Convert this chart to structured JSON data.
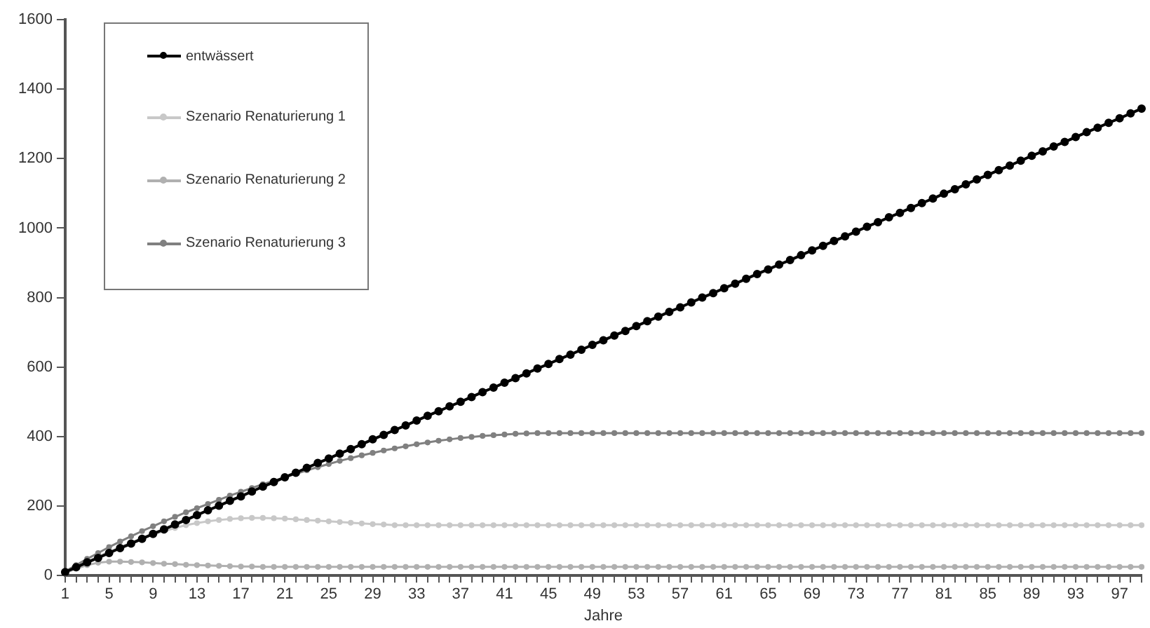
{
  "chart_data": {
    "type": "line",
    "xlabel": "Jahre",
    "ylim": [
      0,
      1600
    ],
    "yticks": [
      0,
      200,
      400,
      600,
      800,
      1000,
      1200,
      1400,
      1600
    ],
    "grid": false,
    "legend": "top left",
    "marker": "circle",
    "line_style": "solid",
    "categories": [
      "1",
      null,
      null,
      null,
      "5",
      null,
      null,
      null,
      "9",
      null,
      null,
      null,
      "13",
      null,
      null,
      null,
      "17",
      null,
      null,
      null,
      "21",
      null,
      null,
      null,
      "25",
      null,
      null,
      null,
      "29",
      null,
      null,
      null,
      "33",
      null,
      null,
      null,
      "37",
      null,
      null,
      null,
      "41",
      null,
      null,
      null,
      "45",
      null,
      null,
      null,
      "49",
      null,
      null,
      null,
      "53",
      null,
      null,
      null,
      "57",
      null,
      null,
      null,
      "61",
      null,
      null,
      null,
      "65",
      null,
      null,
      null,
      "69",
      null,
      null,
      null,
      "73",
      null,
      null,
      null,
      "77",
      null,
      null,
      null,
      "81",
      null,
      null,
      null,
      "85",
      null,
      null,
      null,
      "89",
      null,
      null,
      null,
      "93",
      null,
      null,
      null,
      "97",
      null,
      null
    ],
    "series": [
      {
        "name": "entwässert",
        "color": "#000000",
        "values": [
          10,
          24,
          38,
          51,
          65,
          79,
          92,
          106,
          120,
          133,
          147,
          160,
          174,
          188,
          201,
          215,
          228,
          242,
          256,
          269,
          283,
          296,
          310,
          324,
          337,
          351,
          364,
          378,
          392,
          405,
          419,
          432,
          446,
          460,
          473,
          487,
          500,
          514,
          528,
          541,
          555,
          568,
          582,
          596,
          609,
          623,
          636,
          650,
          664,
          677,
          691,
          704,
          718,
          732,
          745,
          759,
          772,
          786,
          800,
          813,
          827,
          840,
          854,
          868,
          881,
          895,
          908,
          922,
          936,
          949,
          963,
          976,
          990,
          1004,
          1017,
          1031,
          1044,
          1058,
          1072,
          1085,
          1099,
          1112,
          1126,
          1140,
          1153,
          1167,
          1180,
          1194,
          1208,
          1221,
          1235,
          1248,
          1262,
          1276,
          1289,
          1303,
          1316,
          1330,
          1344
        ]
      },
      {
        "name": "Szenario Renaturierung 1",
        "color": "#c8c8c8",
        "values": [
          10,
          25,
          40,
          55,
          68,
          82,
          95,
          107,
          118,
          128,
          137,
          145,
          151,
          156,
          160,
          163,
          165,
          166,
          166,
          165,
          164,
          162,
          160,
          158,
          156,
          154,
          152,
          150,
          148,
          147,
          145,
          145,
          145,
          145,
          145,
          145,
          145,
          145,
          145,
          145,
          145,
          145,
          145,
          145,
          145,
          145,
          145,
          145,
          145,
          145,
          145,
          145,
          145,
          145,
          145,
          145,
          145,
          145,
          145,
          145,
          145,
          145,
          145,
          145,
          145,
          145,
          145,
          145,
          145,
          145,
          145,
          145,
          145,
          145,
          145,
          145,
          145,
          145,
          145,
          145,
          145,
          145,
          145,
          145,
          145,
          145,
          145,
          145,
          145,
          145,
          145,
          145,
          145,
          145,
          145,
          145,
          145,
          145,
          145
        ]
      },
      {
        "name": "Szenario Renaturierung 2",
        "color": "#b0b0b0",
        "values": [
          8,
          20,
          30,
          37,
          40,
          40,
          39,
          38,
          36,
          34,
          33,
          31,
          30,
          29,
          28,
          27,
          26,
          26,
          25,
          25,
          25,
          25,
          25,
          25,
          25,
          25,
          25,
          25,
          25,
          25,
          25,
          25,
          25,
          25,
          25,
          25,
          25,
          25,
          25,
          25,
          25,
          25,
          25,
          25,
          25,
          25,
          25,
          25,
          25,
          25,
          25,
          25,
          25,
          25,
          25,
          25,
          25,
          25,
          25,
          25,
          25,
          25,
          25,
          25,
          25,
          25,
          25,
          25,
          25,
          25,
          25,
          25,
          25,
          25,
          25,
          25,
          25,
          25,
          25,
          25,
          25,
          25,
          25,
          25,
          25,
          25,
          25,
          25,
          25,
          25,
          25,
          25,
          25,
          25,
          25,
          25,
          25,
          25,
          25
        ]
      },
      {
        "name": "Szenario Renaturierung 3",
        "color": "#808080",
        "values": [
          12,
          30,
          48,
          65,
          82,
          98,
          113,
          128,
          142,
          156,
          169,
          182,
          194,
          206,
          218,
          230,
          241,
          252,
          263,
          273,
          283,
          293,
          303,
          312,
          321,
          330,
          338,
          346,
          353,
          360,
          366,
          372,
          378,
          383,
          388,
          392,
          396,
          399,
          402,
          404,
          406,
          408,
          409,
          410,
          410,
          410,
          410,
          410,
          410,
          410,
          410,
          410,
          410,
          410,
          410,
          410,
          410,
          410,
          410,
          410,
          410,
          410,
          410,
          410,
          410,
          410,
          410,
          410,
          410,
          410,
          410,
          410,
          410,
          410,
          410,
          410,
          410,
          410,
          410,
          410,
          410,
          410,
          410,
          410,
          410,
          410,
          410,
          410,
          410,
          410,
          410,
          410,
          410,
          410,
          410,
          410,
          410,
          410,
          410
        ]
      }
    ]
  }
}
